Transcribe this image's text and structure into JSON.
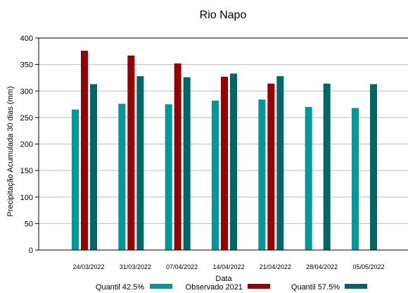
{
  "chart_data": {
    "type": "bar",
    "title": "Rio Napo",
    "xlabel": "Data",
    "ylabel": "Precipitação Acumulada 30 dias (mm)",
    "ylim": [
      0,
      400
    ],
    "yticks": [
      0,
      50,
      100,
      150,
      200,
      250,
      300,
      350,
      400
    ],
    "grid": true,
    "legend_position": "bottom",
    "categories": [
      "24/03/2022",
      "31/03/2022",
      "07/04/2022",
      "14/04/2022",
      "21/04/2022",
      "28/04/2022",
      "05/05/2022"
    ],
    "series": [
      {
        "name": "Quantil 42.5%",
        "color": "#009999",
        "values": [
          265,
          276,
          275,
          282,
          284,
          270,
          268
        ]
      },
      {
        "name": "Observado 2021",
        "color": "#990000",
        "values": [
          376,
          367,
          352,
          327,
          314,
          null,
          null
        ]
      },
      {
        "name": "Quantil 57.5%",
        "color": "#006666",
        "values": [
          313,
          328,
          326,
          333,
          328,
          314,
          313
        ]
      }
    ]
  }
}
